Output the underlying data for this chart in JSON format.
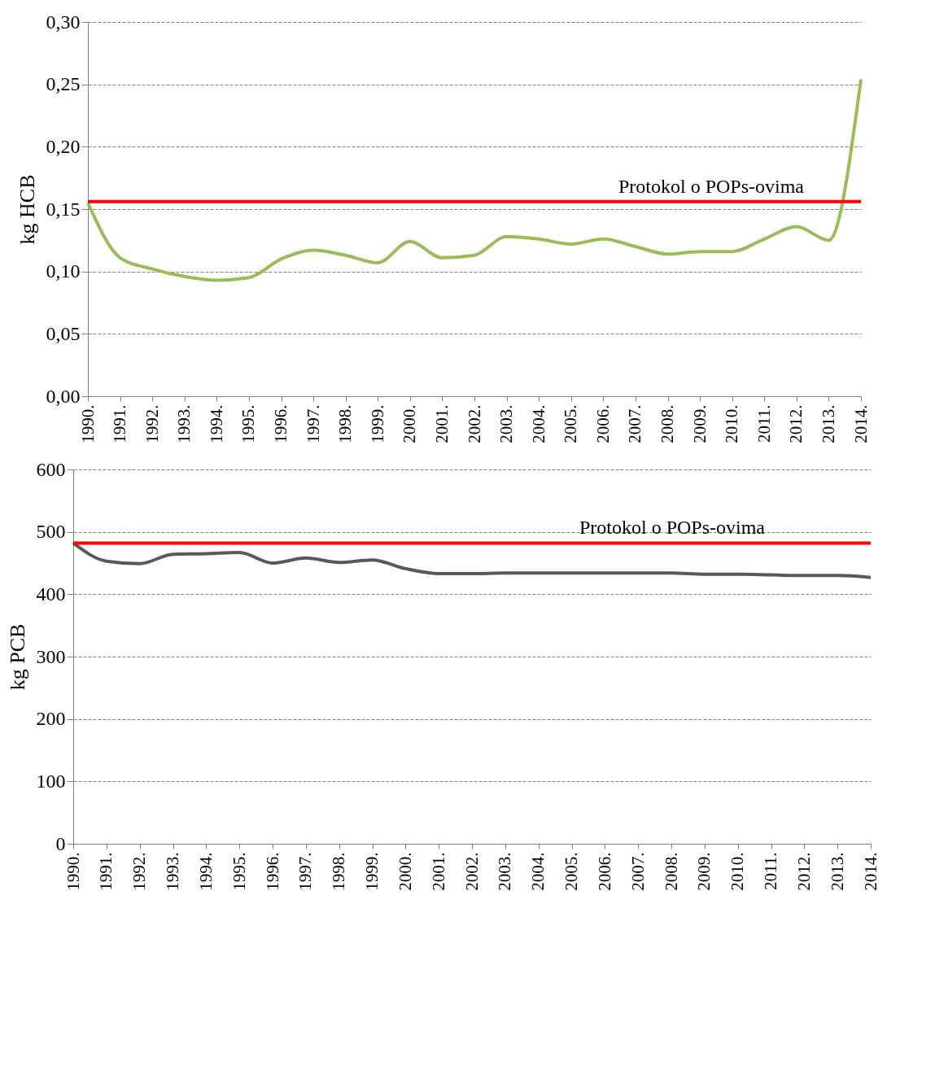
{
  "chart_data": [
    {
      "type": "line",
      "ylabel": "kg  HCB",
      "categories": [
        "1990.",
        "1991.",
        "1992.",
        "1993.",
        "1994.",
        "1995.",
        "1996.",
        "1997.",
        "1998.",
        "1999.",
        "2000.",
        "2001.",
        "2002.",
        "2003.",
        "2004.",
        "2005.",
        "2006.",
        "2007.",
        "2008.",
        "2009.",
        "2010.",
        "2011.",
        "2012.",
        "2013.",
        "2014."
      ],
      "series": [
        {
          "color": "#9bbb59",
          "values": [
            0.155,
            0.111,
            0.102,
            0.096,
            0.093,
            0.095,
            0.11,
            0.117,
            0.113,
            0.107,
            0.124,
            0.111,
            0.113,
            0.128,
            0.126,
            0.122,
            0.126,
            0.12,
            0.114,
            0.116,
            0.116,
            0.126,
            0.136,
            0.125,
            0.254
          ]
        }
      ],
      "ylim": [
        0,
        0.3
      ],
      "yticks": [
        {
          "value": 0,
          "label": "0,00"
        },
        {
          "value": 0.05,
          "label": "0,05"
        },
        {
          "value": 0.1,
          "label": "0,10"
        },
        {
          "value": 0.15,
          "label": "0,15"
        },
        {
          "value": 0.2,
          "label": "0,20"
        },
        {
          "value": 0.25,
          "label": "0,25"
        },
        {
          "value": 0.3,
          "label": "0,30"
        }
      ],
      "ref_lines": [
        {
          "axis": "y",
          "value": 0.156,
          "label": "Protokol o POPs-ovima",
          "color": "#ff0000"
        }
      ],
      "grid": "y"
    },
    {
      "type": "line",
      "ylabel": "kg  PCB",
      "categories": [
        "1990.",
        "1991.",
        "1992.",
        "1993.",
        "1994.",
        "1995.",
        "1996.",
        "1997.",
        "1998.",
        "1999.",
        "2000.",
        "2001.",
        "2002.",
        "2003.",
        "2004.",
        "2005.",
        "2006.",
        "2007.",
        "2008.",
        "2009.",
        "2010.",
        "2011.",
        "2012.",
        "2013.",
        "2014."
      ],
      "series": [
        {
          "color": "#595959",
          "values": [
            482,
            453,
            449,
            464,
            465,
            467,
            450,
            458,
            451,
            455,
            441,
            433,
            433,
            434,
            434,
            434,
            434,
            434,
            434,
            432,
            432,
            431,
            430,
            430,
            427
          ]
        }
      ],
      "ylim": [
        0,
        600
      ],
      "yticks": [
        0,
        100,
        200,
        300,
        400,
        500,
        600
      ],
      "ref_lines": [
        {
          "axis": "y",
          "value": 482,
          "label": "Protokol  o POPs-ovima",
          "color": "#ff0000"
        }
      ],
      "grid": "y"
    }
  ]
}
